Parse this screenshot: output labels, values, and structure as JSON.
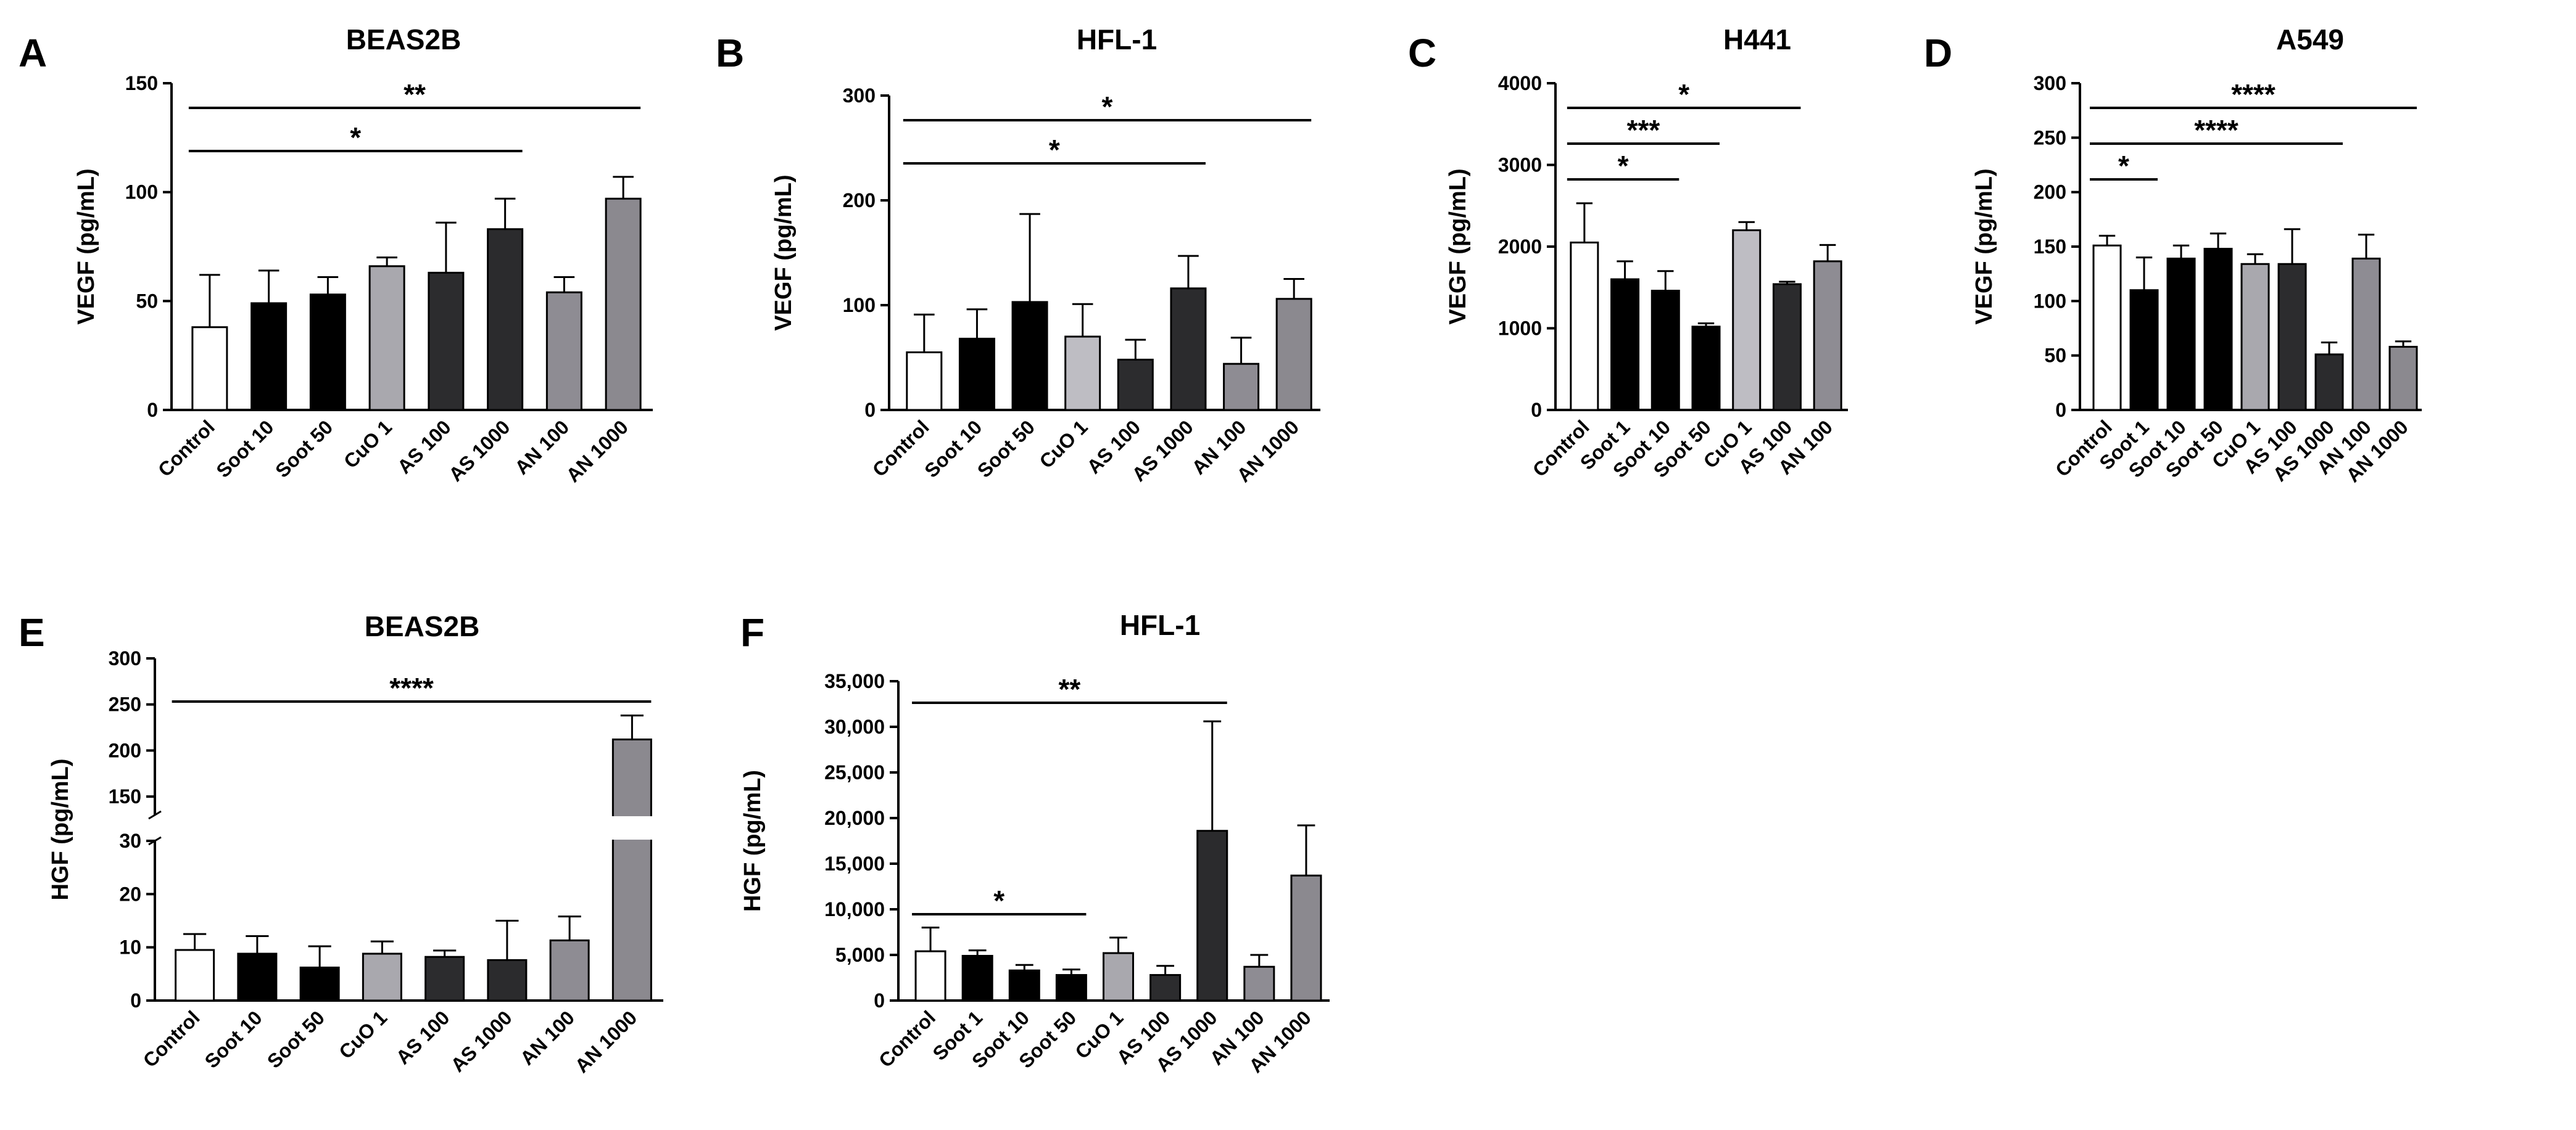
{
  "chart_data": [
    {
      "panel": "A",
      "type": "bar",
      "title": "BEAS2B",
      "ylabel": "VEGF (pg/mL)",
      "ylim": [
        0,
        150
      ],
      "yticks": [
        "0",
        "50",
        "100",
        "150"
      ],
      "ytick_values": [
        0,
        50,
        100,
        150
      ],
      "categories": [
        "Control",
        "Soot 10",
        "Soot 50",
        "CuO 1",
        "AS 100",
        "AS 1000",
        "AN 100",
        "AN 1000"
      ],
      "values": [
        38,
        49,
        53,
        66,
        63,
        83,
        54,
        97
      ],
      "errors": [
        24,
        15,
        8,
        4,
        23,
        14,
        7,
        10
      ],
      "colors": [
        "#ffffff",
        "#000000",
        "#000000",
        "#a9a8ae",
        "#2c2c2e",
        "#2b2b2d",
        "#8e8c93",
        "#8b898f"
      ],
      "significance": [
        {
          "from": 0,
          "to": 5,
          "label": "*"
        },
        {
          "from": 0,
          "to": 7,
          "label": "**"
        }
      ]
    },
    {
      "panel": "B",
      "type": "bar",
      "title": "HFL-1",
      "ylabel": "VEGF (pg/mL)",
      "ylim": [
        0,
        300
      ],
      "yticks": [
        "0",
        "100",
        "200",
        "300"
      ],
      "ytick_values": [
        0,
        100,
        200,
        300
      ],
      "categories": [
        "Control",
        "Soot 10",
        "Soot 50",
        "CuO 1",
        "AS 100",
        "AS 1000",
        "AN 100",
        "AN 1000"
      ],
      "values": [
        55,
        68,
        103,
        70,
        48,
        116,
        44,
        106
      ],
      "errors": [
        36,
        28,
        84,
        31,
        19,
        31,
        25,
        19
      ],
      "colors": [
        "#ffffff",
        "#000000",
        "#000000",
        "#bebdc3",
        "#2c2c2e",
        "#2b2b2d",
        "#8e8c93",
        "#8b898f"
      ],
      "significance": [
        {
          "from": 0,
          "to": 5,
          "label": "*"
        },
        {
          "from": 0,
          "to": 7,
          "label": "*"
        }
      ]
    },
    {
      "panel": "C",
      "type": "bar",
      "title": "H441",
      "ylabel": "VEGF (pg/mL)",
      "ylim": [
        0,
        4000
      ],
      "yticks": [
        "0",
        "1000",
        "2000",
        "3000",
        "4000"
      ],
      "ytick_values": [
        0,
        1000,
        2000,
        3000,
        4000
      ],
      "categories": [
        "Control",
        "Soot 1",
        "Soot 10",
        "Soot 50",
        "CuO 1",
        "AS 100",
        "AN 100"
      ],
      "values": [
        2050,
        1600,
        1460,
        1020,
        2200,
        1540,
        1820
      ],
      "errors": [
        480,
        220,
        240,
        40,
        100,
        30,
        200
      ],
      "colors": [
        "#ffffff",
        "#000000",
        "#000000",
        "#000000",
        "#bebdc3",
        "#2b2b2d",
        "#8e8c93"
      ],
      "significance": [
        {
          "from": 0,
          "to": 2,
          "label": "*"
        },
        {
          "from": 0,
          "to": 3,
          "label": "***"
        },
        {
          "from": 0,
          "to": 5,
          "label": "*"
        }
      ]
    },
    {
      "panel": "D",
      "type": "bar",
      "title": "A549",
      "ylabel": "VEGF (pg/mL)",
      "ylim": [
        0,
        300
      ],
      "yticks": [
        "0",
        "50",
        "100",
        "150",
        "200",
        "250",
        "300"
      ],
      "ytick_values": [
        0,
        50,
        100,
        150,
        200,
        250,
        300
      ],
      "categories": [
        "Control",
        "Soot 1",
        "Soot 10",
        "Soot 50",
        "CuO 1",
        "AS 100",
        "AS 1000",
        "AN 100",
        "AN 1000"
      ],
      "values": [
        151,
        110,
        139,
        148,
        134,
        134,
        51,
        139,
        58
      ],
      "errors": [
        9,
        30,
        12,
        14,
        9,
        32,
        11,
        22,
        5
      ],
      "colors": [
        "#ffffff",
        "#000000",
        "#000000",
        "#000000",
        "#a9a8ae",
        "#2c2c2e",
        "#2b2b2d",
        "#8e8c93",
        "#8b898f"
      ],
      "significance": [
        {
          "from": 0,
          "to": 1,
          "label": "*"
        },
        {
          "from": 0,
          "to": 6,
          "label": "****"
        },
        {
          "from": 0,
          "to": 8,
          "label": "****"
        }
      ]
    },
    {
      "panel": "E",
      "type": "bar",
      "title": "BEAS2B",
      "ylabel": "HGF (pg/mL)",
      "axis_break": {
        "lower": [
          0,
          30
        ],
        "upper": [
          130,
          300
        ]
      },
      "yticks": [
        "0",
        "10",
        "20",
        "30",
        "150",
        "200",
        "250",
        "300"
      ],
      "ytick_values": [
        0,
        10,
        20,
        30,
        150,
        200,
        250,
        300
      ],
      "categories": [
        "Control",
        "Soot 10",
        "Soot 50",
        "CuO 1",
        "AS 100",
        "AS 1000",
        "AN 100",
        "AN 1000"
      ],
      "values": [
        9.5,
        8.8,
        6.2,
        8.8,
        8.2,
        7.6,
        11.3,
        212
      ],
      "errors": [
        3,
        3.3,
        4,
        2.3,
        1.2,
        7.4,
        4.5,
        26
      ],
      "colors": [
        "#ffffff",
        "#000000",
        "#000000",
        "#a9a8ae",
        "#2c2c2e",
        "#2b2b2d",
        "#8e8c93",
        "#8b898f"
      ],
      "significance": [
        {
          "from": 0,
          "to": 7,
          "label": "****"
        }
      ]
    },
    {
      "panel": "F",
      "type": "bar",
      "title": "HFL-1",
      "ylabel": "HGF (pg/mL)",
      "ylim": [
        0,
        35000
      ],
      "yticks": [
        "0",
        "5,000",
        "10,000",
        "15,000",
        "20,000",
        "25,000",
        "30,000",
        "35,000"
      ],
      "ytick_values": [
        0,
        5000,
        10000,
        15000,
        20000,
        25000,
        30000,
        35000
      ],
      "categories": [
        "Control",
        "Soot 1",
        "Soot 10",
        "Soot 50",
        "CuO 1",
        "AS 100",
        "AS 1000",
        "AN 100",
        "AN 1000"
      ],
      "values": [
        5400,
        4900,
        3300,
        2800,
        5200,
        2800,
        18600,
        3700,
        13700
      ],
      "errors": [
        2600,
        600,
        600,
        600,
        1700,
        1000,
        12000,
        1300,
        5500
      ],
      "colors": [
        "#ffffff",
        "#000000",
        "#000000",
        "#000000",
        "#a9a8ae",
        "#2c2c2e",
        "#2b2b2d",
        "#8e8c93",
        "#8b898f"
      ],
      "significance": [
        {
          "from": 0,
          "to": 3,
          "label": "*"
        },
        {
          "from": 0,
          "to": 6,
          "label": "**"
        }
      ]
    }
  ]
}
